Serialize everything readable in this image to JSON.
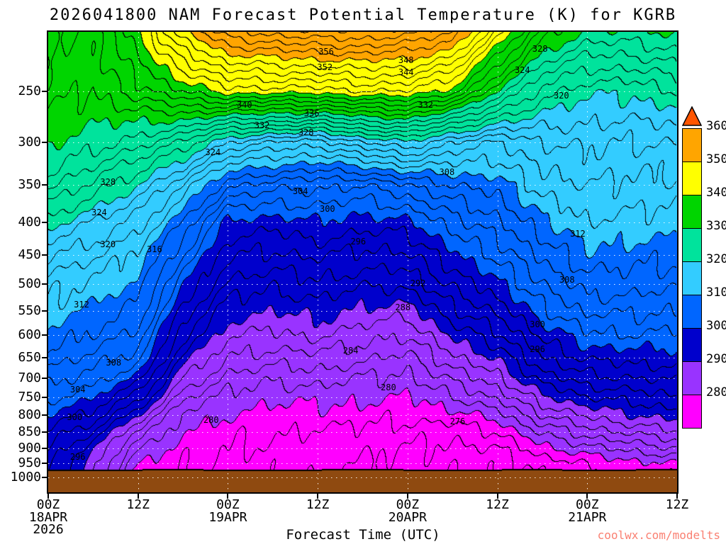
{
  "title": "2026041800 NAM Forecast Potential Temperature (K) for KGRB",
  "watermark": "coolwx.com/modelts",
  "colors": {
    "watermark": "#FA8072",
    "axis": "#000000",
    "background": "#FFFFFF",
    "gridline": "#FFFFFF",
    "contour_line": "#000000"
  },
  "x_axis": {
    "label": "Forecast Time (UTC)",
    "year": "2026",
    "hours_range": [
      0,
      84
    ],
    "tick_hours": [
      0,
      12,
      24,
      36,
      48,
      60,
      72,
      84
    ],
    "tick_labels": [
      "00Z",
      "12Z",
      "00Z",
      "12Z",
      "00Z",
      "12Z",
      "00Z",
      "12Z"
    ],
    "date_labels": [
      {
        "text": "18APR",
        "hour": 0
      },
      {
        "text": "19APR",
        "hour": 24
      },
      {
        "text": "20APR",
        "hour": 48
      },
      {
        "text": "21APR",
        "hour": 72
      }
    ]
  },
  "y_axis": {
    "unit": "hPa",
    "log_scale": true,
    "top_hpa": 202,
    "bottom_hpa": 1055,
    "tick_values": [
      250,
      300,
      350,
      400,
      450,
      500,
      550,
      600,
      650,
      700,
      750,
      800,
      850,
      900,
      950,
      1000
    ]
  },
  "colorbar": {
    "tick_labels": [
      360,
      350,
      340,
      330,
      320,
      310,
      300,
      290,
      280
    ]
  },
  "chart_data": {
    "type": "heatmap",
    "quantity": "potential_temperature_K",
    "fill_interval_k": 10,
    "line_interval_k": 2,
    "fill_levels": [
      280,
      290,
      300,
      310,
      320,
      330,
      340,
      350,
      360
    ],
    "fill_colors": [
      "#FF00FF",
      "#9933FF",
      "#0000CC",
      "#0066FF",
      "#33CCFF",
      "#00E39C",
      "#00D500",
      "#FFFF00",
      "#FFA500",
      "#FF5500"
    ],
    "terrain_color": "#8F4A10",
    "x_hours": [
      0,
      6,
      12,
      18,
      24,
      30,
      36,
      42,
      48,
      54,
      60,
      66,
      72,
      78,
      84
    ],
    "pressure_levels_hpa": [
      200,
      250,
      300,
      350,
      400,
      450,
      500,
      550,
      600,
      650,
      700,
      750,
      800,
      850,
      900,
      950,
      1000
    ],
    "theta_k": [
      [
        335.0,
        333.0,
        330.5,
        327.0,
        321.0,
        316.0,
        313.0,
        311.5,
        309.5,
        307.5,
        305.0,
        302.5,
        300.0,
        297.5,
        296.0,
        295.0,
        294.0
      ],
      [
        333.0,
        332.0,
        329.0,
        323.5,
        318.0,
        314.5,
        311.5,
        309.5,
        307.5,
        305.5,
        303.0,
        300.5,
        297.5,
        294.0,
        291.0,
        289.0,
        288.0
      ],
      [
        340.0,
        335.0,
        327.0,
        320.0,
        315.0,
        311.5,
        309.5,
        307.5,
        305.5,
        303.0,
        299.5,
        295.0,
        290.0,
        285.5,
        282.0,
        280.2,
        279.0
      ],
      [
        350.0,
        338.0,
        324.0,
        314.0,
        308.0,
        304.0,
        300.5,
        297.5,
        294.5,
        291.5,
        288.0,
        284.5,
        281.5,
        280.0,
        279.0,
        278.5,
        278.0
      ],
      [
        356.0,
        341.0,
        318.0,
        306.5,
        299.5,
        296.5,
        293.5,
        291.0,
        288.5,
        286.0,
        283.5,
        281.5,
        280.0,
        278.8,
        278.0,
        277.5,
        277.0
      ],
      [
        357.5,
        341.0,
        316.0,
        305.0,
        299.0,
        295.5,
        292.5,
        290.0,
        287.5,
        285.0,
        282.5,
        280.5,
        279.2,
        278.2,
        277.5,
        277.0,
        276.5
      ],
      [
        358.5,
        341.0,
        315.0,
        304.5,
        300.0,
        296.5,
        293.5,
        291.0,
        288.5,
        285.5,
        283.0,
        280.8,
        279.2,
        277.8,
        277.0,
        276.5,
        276.0
      ],
      [
        358.5,
        342.0,
        318.0,
        304.0,
        299.0,
        295.5,
        292.5,
        289.5,
        287.0,
        284.5,
        282.0,
        280.5,
        279.0,
        277.5,
        276.5,
        276.0,
        275.5
      ],
      [
        357.5,
        342.0,
        320.0,
        306.0,
        299.5,
        295.5,
        292.5,
        289.0,
        286.0,
        283.5,
        281.5,
        279.8,
        278.5,
        277.0,
        276.0,
        275.5,
        275.0
      ],
      [
        355.0,
        339.0,
        316.0,
        308.0,
        303.0,
        299.5,
        296.5,
        293.5,
        290.5,
        287.5,
        284.5,
        281.8,
        279.2,
        276.8,
        275.5,
        274.6,
        274.2
      ],
      [
        344.0,
        330.0,
        314.0,
        309.0,
        305.5,
        302.5,
        299.5,
        296.5,
        293.5,
        290.5,
        287.5,
        284.5,
        281.0,
        278.0,
        276.0,
        274.8,
        274.4
      ],
      [
        334.0,
        323.0,
        316.0,
        313.0,
        309.5,
        306.5,
        304.0,
        301.5,
        298.5,
        296.0,
        293.0,
        289.5,
        286.0,
        282.5,
        279.5,
        276.8,
        276.0
      ],
      [
        330.0,
        320.5,
        316.5,
        314.0,
        312.0,
        309.5,
        307.0,
        304.5,
        301.5,
        298.5,
        295.5,
        292.0,
        288.5,
        285.0,
        281.5,
        278.4,
        277.0
      ],
      [
        330.0,
        320.5,
        316.0,
        313.5,
        311.5,
        309.0,
        307.0,
        304.5,
        302.0,
        299.0,
        296.0,
        293.0,
        290.0,
        286.5,
        283.0,
        279.5,
        278.0
      ],
      [
        331.0,
        322.0,
        316.0,
        313.5,
        311.0,
        308.5,
        306.5,
        304.0,
        301.5,
        299.0,
        296.5,
        294.0,
        291.0,
        288.0,
        284.0,
        280.0,
        278.0
      ]
    ],
    "terrain_pressure_hpa": [
      975,
      976,
      975,
      974,
      976,
      977,
      975,
      974,
      975,
      976,
      975,
      974,
      976,
      975,
      974
    ],
    "contour_labels": [
      {
        "v": 356,
        "x": 44.2,
        "y": 4.3
      },
      {
        "v": 352,
        "x": 44.0,
        "y": 7.7
      },
      {
        "v": 348,
        "x": 56.9,
        "y": 6.2
      },
      {
        "v": 344,
        "x": 56.9,
        "y": 8.8
      },
      {
        "v": 328,
        "x": 78.2,
        "y": 3.7
      },
      {
        "v": 324,
        "x": 75.4,
        "y": 8.3
      },
      {
        "v": 320,
        "x": 81.6,
        "y": 13.8
      },
      {
        "v": 340,
        "x": 31.2,
        "y": 15.8
      },
      {
        "v": 336,
        "x": 41.9,
        "y": 17.7
      },
      {
        "v": 332,
        "x": 34.0,
        "y": 20.3
      },
      {
        "v": 328,
        "x": 41.0,
        "y": 21.8
      },
      {
        "v": 332,
        "x": 60.0,
        "y": 15.8
      },
      {
        "v": 324,
        "x": 26.2,
        "y": 26.2
      },
      {
        "v": 328,
        "x": 9.5,
        "y": 32.6
      },
      {
        "v": 324,
        "x": 8.1,
        "y": 39.2
      },
      {
        "v": 320,
        "x": 9.5,
        "y": 46.2
      },
      {
        "v": 316,
        "x": 16.9,
        "y": 47.2
      },
      {
        "v": 308,
        "x": 63.4,
        "y": 30.5
      },
      {
        "v": 304,
        "x": 40.1,
        "y": 34.6
      },
      {
        "v": 300,
        "x": 44.4,
        "y": 38.5
      },
      {
        "v": 296,
        "x": 49.3,
        "y": 45.5
      },
      {
        "v": 312,
        "x": 84.2,
        "y": 43.8
      },
      {
        "v": 312,
        "x": 5.3,
        "y": 59.2
      },
      {
        "v": 292,
        "x": 58.8,
        "y": 54.6
      },
      {
        "v": 288,
        "x": 56.4,
        "y": 59.8
      },
      {
        "v": 308,
        "x": 82.5,
        "y": 53.8
      },
      {
        "v": 300,
        "x": 77.8,
        "y": 63.5
      },
      {
        "v": 296,
        "x": 77.8,
        "y": 68.9
      },
      {
        "v": 284,
        "x": 48.1,
        "y": 69.2
      },
      {
        "v": 308,
        "x": 10.4,
        "y": 71.8
      },
      {
        "v": 304,
        "x": 4.7,
        "y": 77.7
      },
      {
        "v": 280,
        "x": 54.1,
        "y": 77.2
      },
      {
        "v": 300,
        "x": 4.2,
        "y": 83.7
      },
      {
        "v": 280,
        "x": 25.9,
        "y": 84.3
      },
      {
        "v": 276,
        "x": 65.1,
        "y": 84.6
      },
      {
        "v": 296,
        "x": 4.7,
        "y": 92.3
      }
    ]
  }
}
